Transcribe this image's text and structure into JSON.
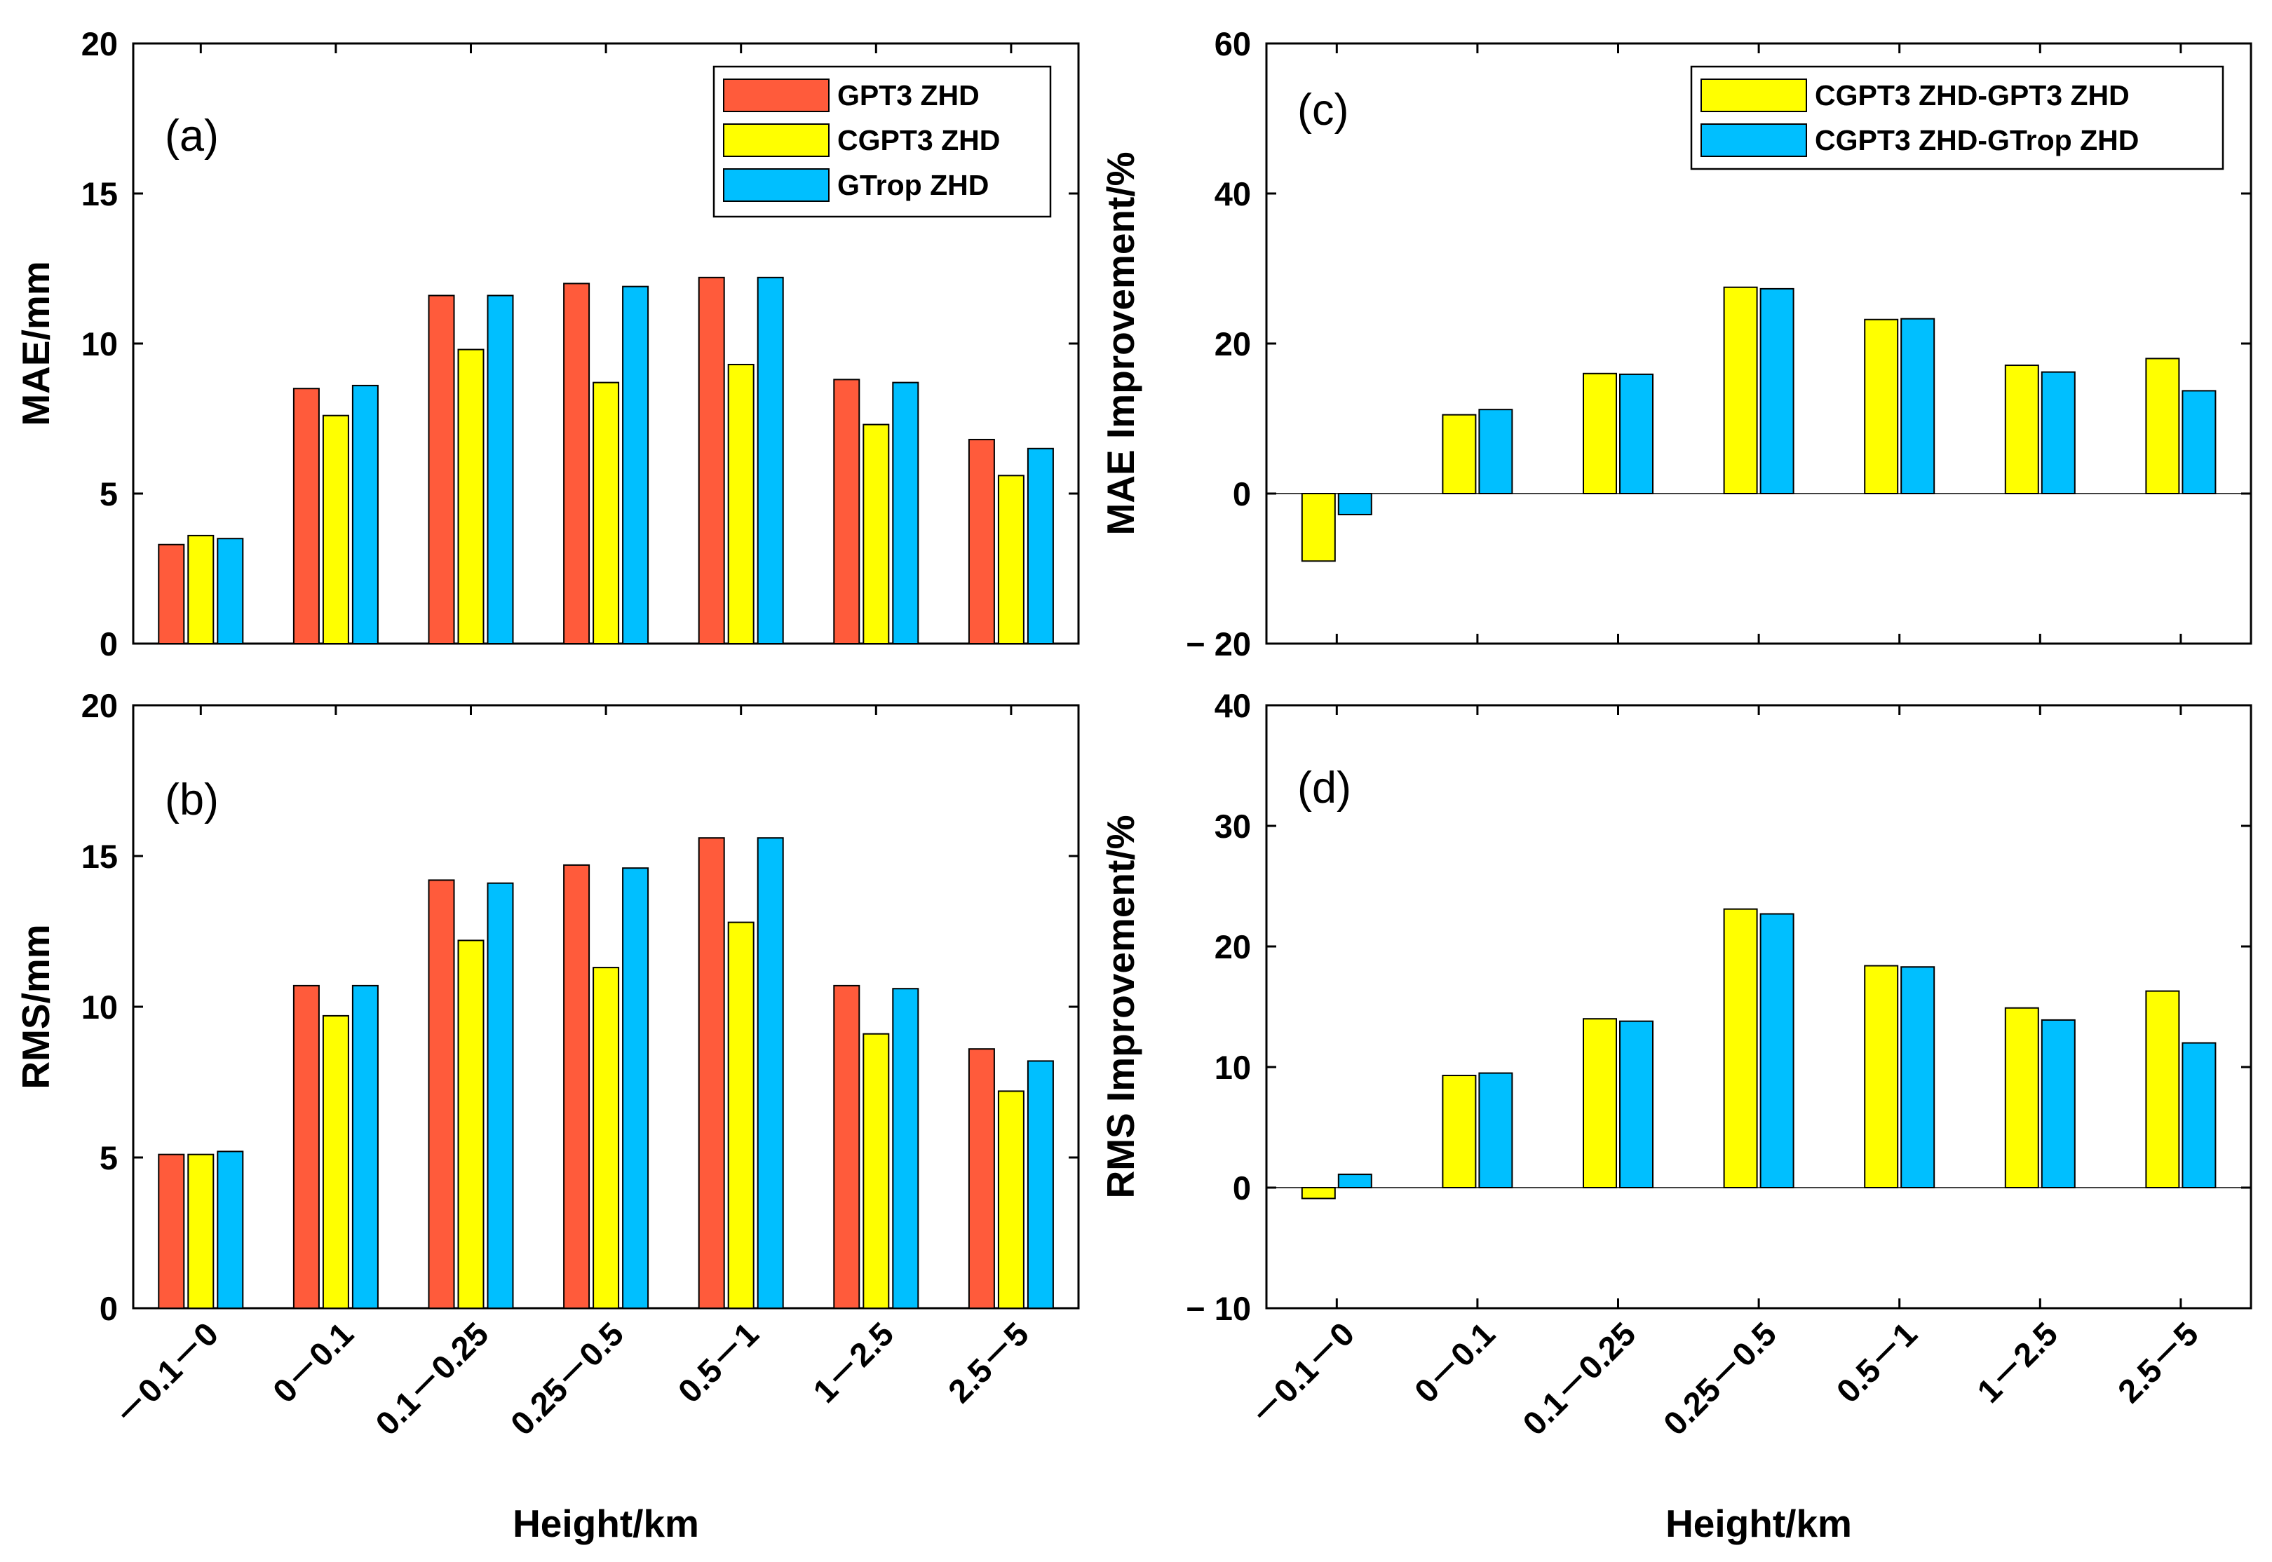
{
  "chart_data": [
    {
      "id": "a",
      "type": "bar",
      "panel_label": "(a)",
      "ylabel": "MAE/mm",
      "xlabel": "",
      "ylim": [
        0,
        20
      ],
      "yticks": [
        0,
        5,
        10,
        15,
        20
      ],
      "categories": [
        "－0.1－0",
        "0－0.1",
        "0.1－0.25",
        "0.25－0.5",
        "0.5－1",
        "1－2.5",
        "2.5－5"
      ],
      "series": [
        {
          "name": "GPT3 ZHD",
          "color": "#ff5b3b",
          "values": [
            3.3,
            8.5,
            11.6,
            12.0,
            12.2,
            8.8,
            6.8
          ]
        },
        {
          "name": "CGPT3 ZHD",
          "color": "#ffff00",
          "values": [
            3.6,
            7.6,
            9.8,
            8.7,
            9.3,
            7.3,
            5.6
          ]
        },
        {
          "name": "GTrop ZHD",
          "color": "#00bfff",
          "values": [
            3.5,
            8.6,
            11.6,
            11.9,
            12.2,
            8.7,
            6.5
          ]
        }
      ],
      "legend": "top-right",
      "grid": false
    },
    {
      "id": "b",
      "type": "bar",
      "panel_label": "(b)",
      "ylabel": "RMS/mm",
      "xlabel": "Height/km",
      "ylim": [
        0,
        20
      ],
      "yticks": [
        0,
        5,
        10,
        15,
        20
      ],
      "categories": [
        "－0.1－0",
        "0－0.1",
        "0.1－0.25",
        "0.25－0.5",
        "0.5－1",
        "1－2.5",
        "2.5－5"
      ],
      "series": [
        {
          "name": "GPT3 ZHD",
          "color": "#ff5b3b",
          "values": [
            5.1,
            10.7,
            14.2,
            14.7,
            15.6,
            10.7,
            8.6
          ]
        },
        {
          "name": "CGPT3 ZHD",
          "color": "#ffff00",
          "values": [
            5.1,
            9.7,
            12.2,
            11.3,
            12.8,
            9.1,
            7.2
          ]
        },
        {
          "name": "GTrop ZHD",
          "color": "#00bfff",
          "values": [
            5.2,
            10.7,
            14.1,
            14.6,
            15.6,
            10.6,
            8.2
          ]
        }
      ],
      "grid": false
    },
    {
      "id": "c",
      "type": "bar",
      "panel_label": "(c)",
      "ylabel": "MAE Improvement/%",
      "xlabel": "",
      "ylim": [
        -20,
        60
      ],
      "yticks": [
        -20,
        0,
        20,
        40,
        60
      ],
      "categories": [
        "－0.1－0",
        "0－0.1",
        "0.1－0.25",
        "0.25－0.5",
        "0.5－1",
        "1－2.5",
        "2.5－5"
      ],
      "series": [
        {
          "name": "CGPT3 ZHD-GPT3 ZHD",
          "color": "#ffff00",
          "values": [
            -9.0,
            10.5,
            16.0,
            27.5,
            23.2,
            17.1,
            18.0
          ]
        },
        {
          "name": "CGPT3 ZHD-GTrop ZHD",
          "color": "#00bfff",
          "values": [
            -2.8,
            11.2,
            15.9,
            27.3,
            23.3,
            16.2,
            13.7
          ]
        }
      ],
      "legend": "top-right",
      "grid": false
    },
    {
      "id": "d",
      "type": "bar",
      "panel_label": "(d)",
      "ylabel": "RMS Improvement/%",
      "xlabel": "Height/km",
      "ylim": [
        -10,
        40
      ],
      "yticks": [
        -10,
        0,
        10,
        20,
        30,
        40
      ],
      "categories": [
        "－0.1－0",
        "0－0.1",
        "0.1－0.25",
        "0.25－0.5",
        "0.5－1",
        "1－2.5",
        "2.5－5"
      ],
      "series": [
        {
          "name": "CGPT3 ZHD-GPT3 ZHD",
          "color": "#ffff00",
          "values": [
            -0.9,
            9.3,
            14.0,
            23.1,
            18.4,
            14.9,
            16.3
          ]
        },
        {
          "name": "CGPT3 ZHD-GTrop ZHD",
          "color": "#00bfff",
          "values": [
            1.1,
            9.5,
            13.8,
            22.7,
            18.3,
            13.9,
            12.0
          ]
        }
      ],
      "grid": false
    }
  ]
}
